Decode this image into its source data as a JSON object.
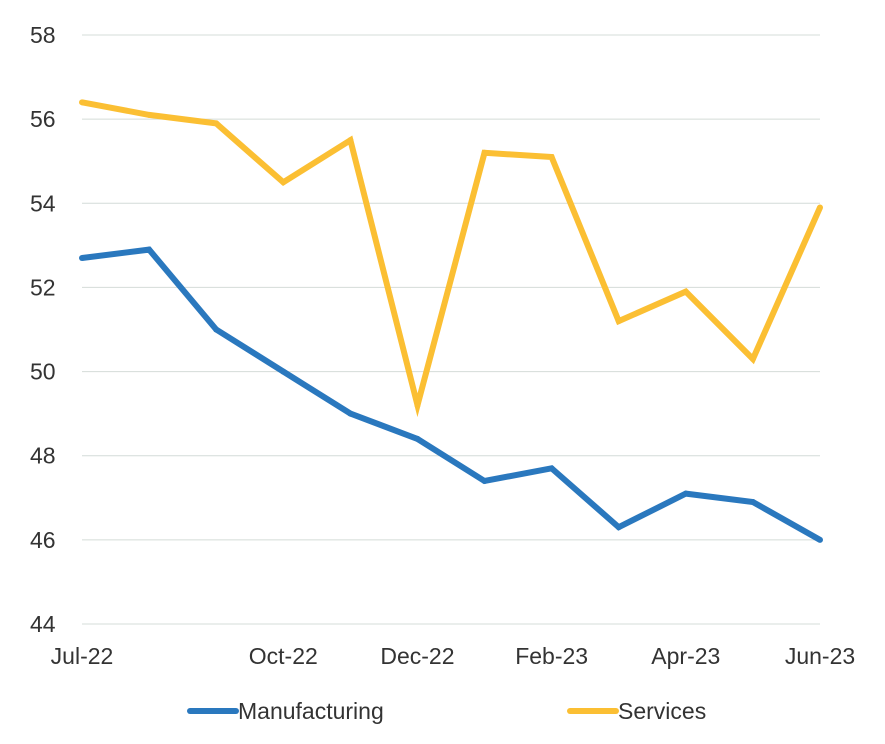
{
  "chart_data": {
    "type": "line",
    "title": "",
    "xlabel": "",
    "ylabel": "",
    "x": [
      "Jul-22",
      "Aug-22",
      "Sep-22",
      "Oct-22",
      "Nov-22",
      "Dec-22",
      "Jan-23",
      "Feb-23",
      "Mar-23",
      "Apr-23",
      "May-23",
      "Jun-23"
    ],
    "x_tick_labels": [
      "Jul-22",
      "Oct-22",
      "Dec-22",
      "Feb-23",
      "Apr-23",
      "Jun-23"
    ],
    "ylim": [
      44,
      58
    ],
    "y_ticks": [
      44,
      46,
      48,
      50,
      52,
      54,
      56,
      58
    ],
    "grid": true,
    "legend_placement": "bottom",
    "series": [
      {
        "name": "Manufacturing",
        "color": "#2a78be",
        "values": [
          52.7,
          52.9,
          51.0,
          50.0,
          49.0,
          48.4,
          47.4,
          47.7,
          46.3,
          47.1,
          46.9,
          46.0
        ]
      },
      {
        "name": "Services",
        "color": "#fbbf33",
        "values": [
          56.4,
          56.1,
          55.9,
          54.5,
          55.5,
          49.2,
          55.2,
          55.1,
          51.2,
          51.9,
          50.3,
          53.9
        ]
      }
    ]
  }
}
